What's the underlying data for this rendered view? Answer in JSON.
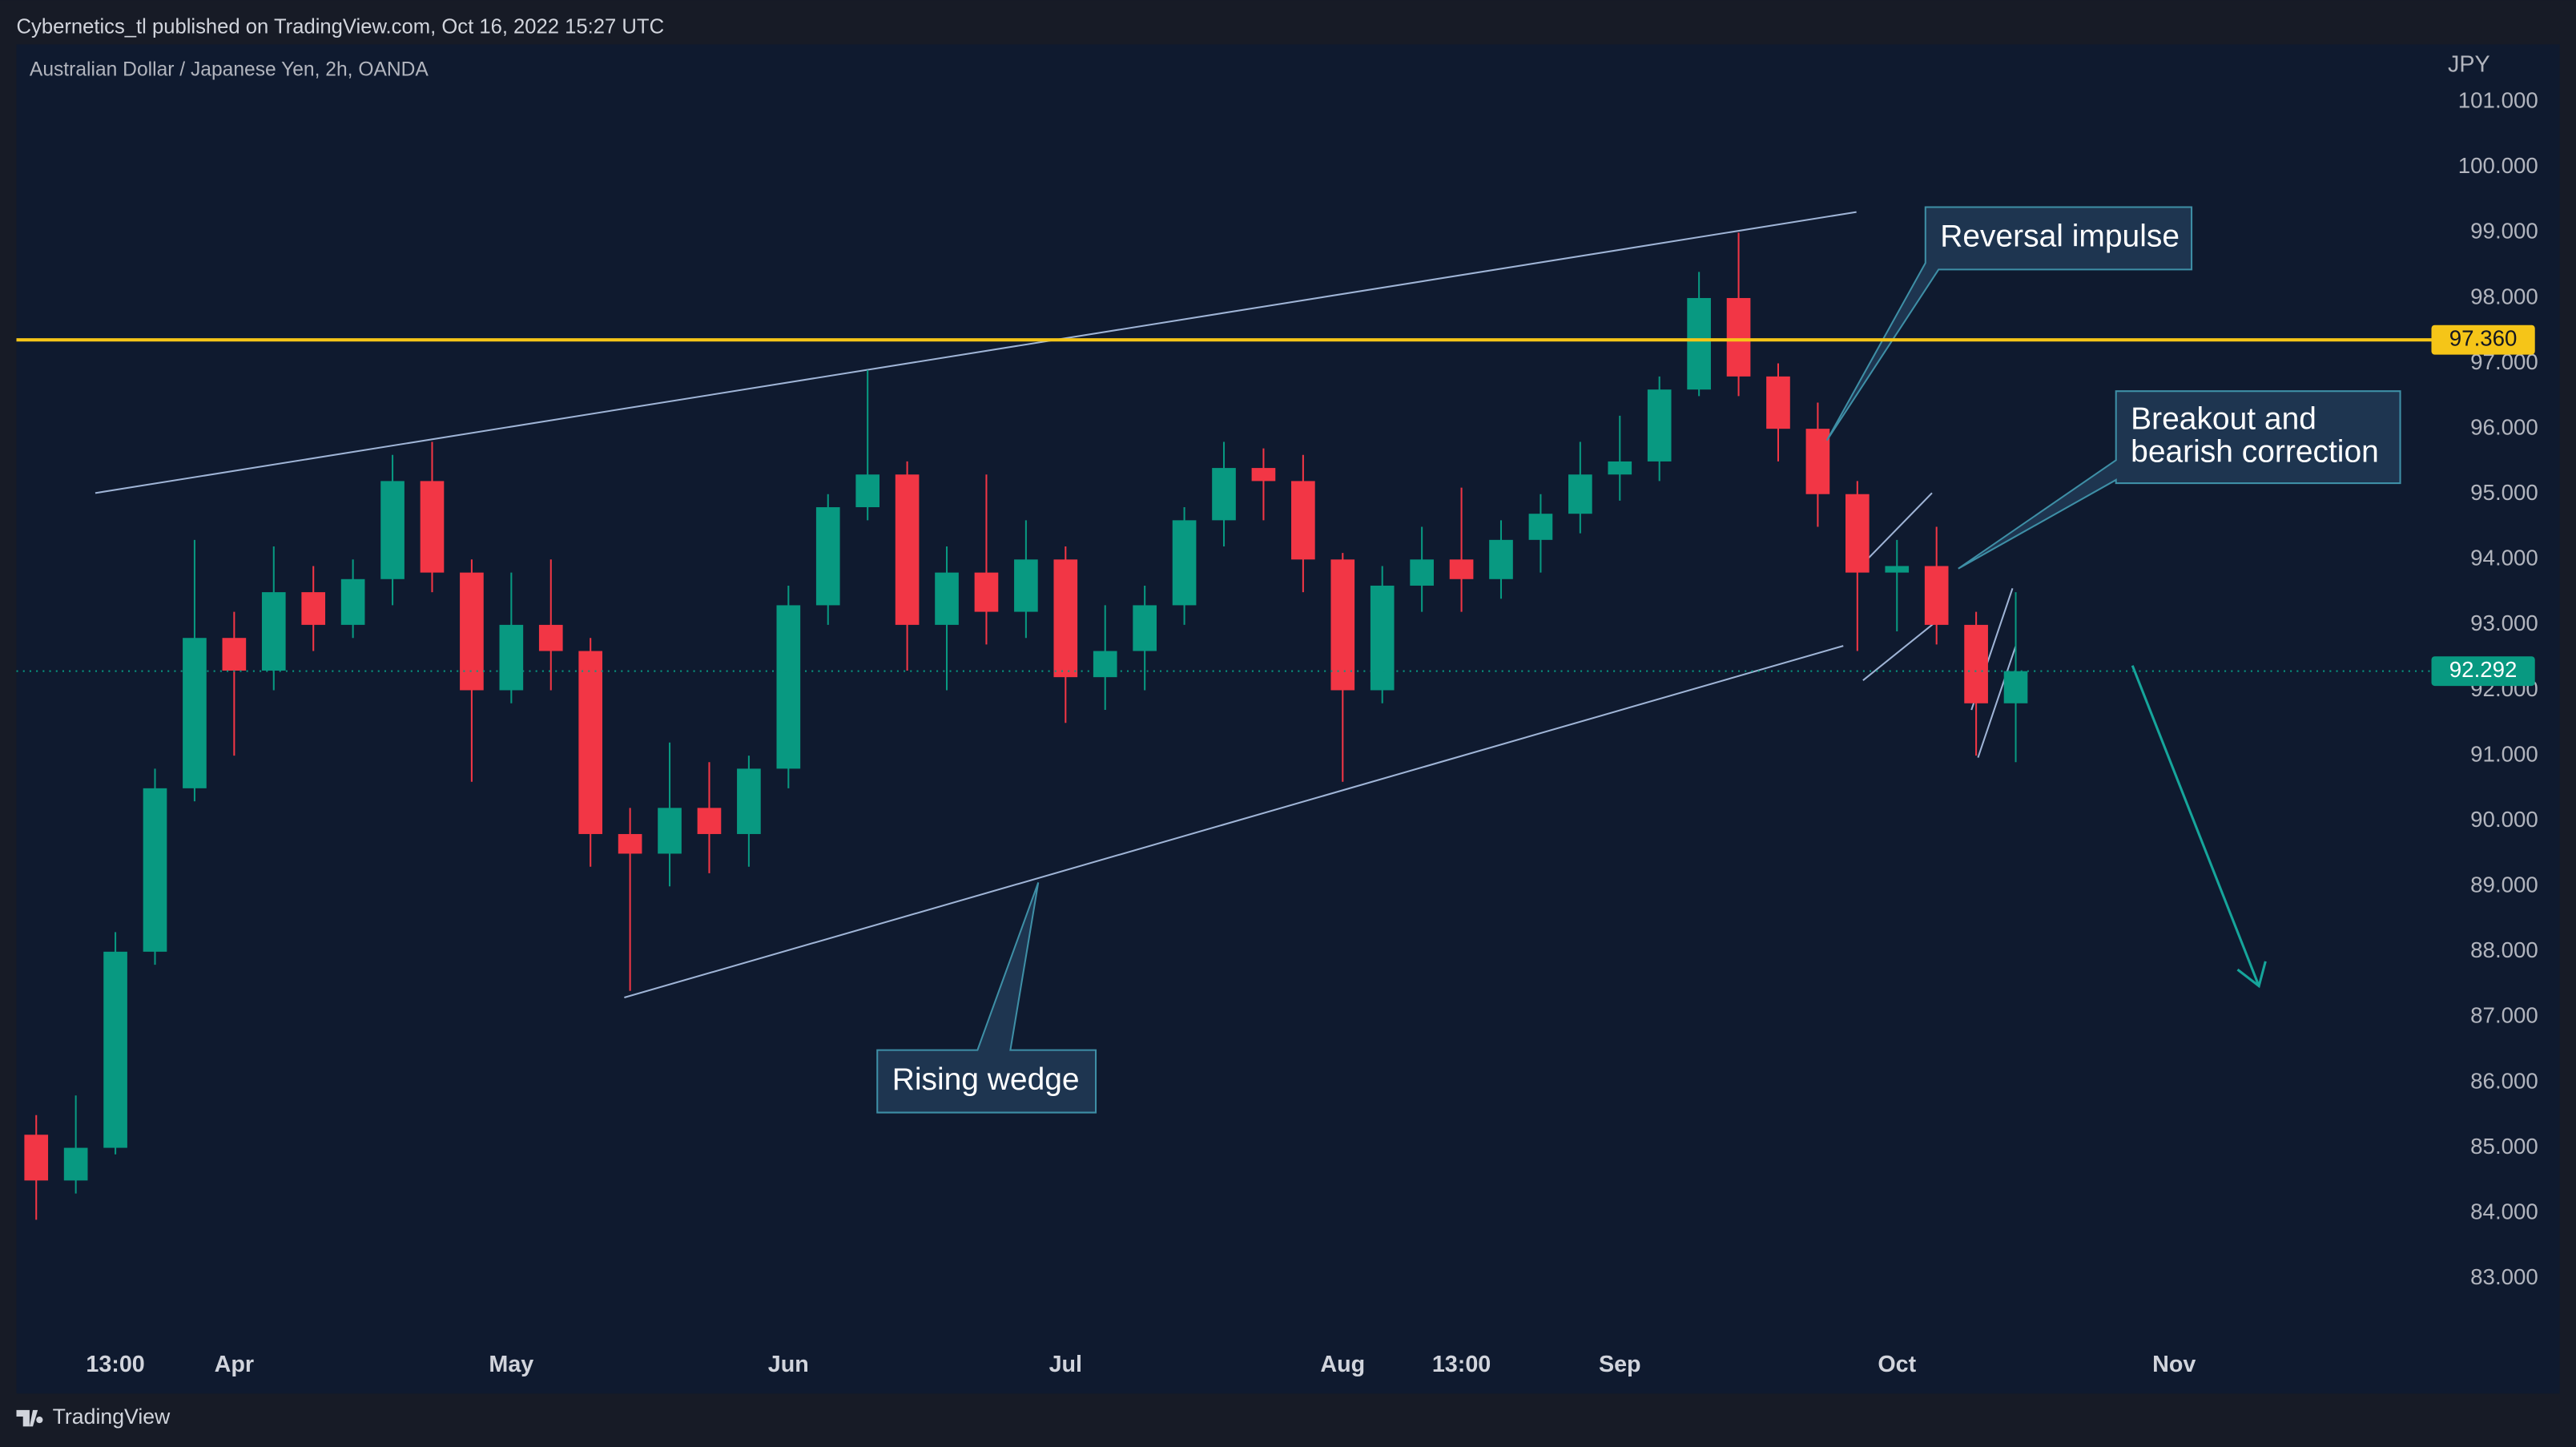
{
  "header": "Cybernetics_tl published on TradingView.com, Oct 16, 2022 15:27 UTC",
  "footer": "TradingView",
  "chart_data": {
    "type": "candlestick",
    "title": "Australian Dollar / Japanese Yen, 2h, OANDA",
    "y_label": "JPY",
    "categories": [
      null,
      null,
      "13:00",
      null,
      null,
      "Apr",
      null,
      null,
      null,
      null,
      null,
      null,
      "May",
      null,
      null,
      null,
      null,
      null,
      null,
      "Jun",
      null,
      null,
      null,
      null,
      null,
      null,
      "Jul",
      null,
      null,
      null,
      null,
      null,
      null,
      "Aug",
      null,
      null,
      "13:00",
      null,
      null,
      null,
      "Sep",
      null,
      null,
      null,
      null,
      null,
      null,
      "Oct",
      null,
      null,
      null,
      null,
      null,
      null,
      "Nov",
      null,
      null,
      null,
      null,
      null,
      null
    ],
    "open": [
      85.2,
      84.5,
      85.0,
      88.0,
      90.5,
      92.8,
      92.3,
      93.5,
      93.0,
      93.7,
      95.2,
      93.8,
      92.0,
      93.0,
      92.6,
      89.8,
      89.5,
      90.2,
      89.8,
      90.8,
      93.3,
      94.8,
      95.3,
      93.0,
      93.8,
      93.2,
      94.0,
      92.2,
      92.6,
      93.3,
      94.6,
      95.4,
      95.2,
      94.0,
      92.0,
      93.6,
      94.0,
      93.7,
      94.3,
      94.7,
      95.3,
      95.5,
      96.6,
      98.0,
      96.8,
      96.0,
      95.0,
      93.8,
      93.9,
      93.0,
      91.8,
      null,
      null,
      null,
      null,
      null,
      null,
      null,
      null,
      null,
      null
    ],
    "high": [
      85.5,
      85.8,
      88.3,
      90.8,
      94.3,
      93.2,
      94.2,
      93.9,
      94.0,
      95.6,
      95.8,
      94.0,
      93.8,
      94.0,
      92.8,
      90.2,
      91.2,
      90.9,
      91.0,
      93.6,
      95.0,
      96.9,
      95.5,
      94.2,
      95.3,
      94.6,
      94.2,
      93.3,
      93.6,
      94.8,
      95.8,
      95.7,
      95.6,
      94.1,
      93.9,
      94.5,
      95.1,
      94.6,
      95.0,
      95.8,
      96.2,
      96.8,
      98.4,
      99.0,
      97.0,
      96.4,
      95.2,
      94.3,
      94.5,
      93.2,
      93.5,
      null,
      null,
      null,
      null,
      null,
      null,
      null,
      null,
      null,
      null
    ],
    "low": [
      83.9,
      84.3,
      84.9,
      87.8,
      90.3,
      91.0,
      92.0,
      92.6,
      92.8,
      93.3,
      93.5,
      90.6,
      91.8,
      92.0,
      89.3,
      87.4,
      89.0,
      89.2,
      89.3,
      90.5,
      93.0,
      94.6,
      92.3,
      92.0,
      92.7,
      92.8,
      91.5,
      91.7,
      92.0,
      93.0,
      94.2,
      94.6,
      93.5,
      90.6,
      91.8,
      93.2,
      93.2,
      93.4,
      93.8,
      94.4,
      94.9,
      95.2,
      96.5,
      96.5,
      95.5,
      94.5,
      92.6,
      92.9,
      92.7,
      91.0,
      90.9,
      null,
      null,
      null,
      null,
      null,
      null,
      null,
      null,
      null,
      null
    ],
    "close": [
      84.5,
      85.0,
      88.0,
      90.5,
      92.8,
      92.3,
      93.5,
      93.0,
      93.7,
      95.2,
      93.8,
      92.0,
      93.0,
      92.6,
      89.8,
      89.5,
      90.2,
      89.8,
      90.8,
      93.3,
      94.8,
      95.3,
      93.0,
      93.8,
      93.2,
      94.0,
      92.2,
      92.6,
      93.3,
      94.6,
      95.4,
      95.2,
      94.0,
      92.0,
      93.6,
      94.0,
      93.7,
      94.3,
      94.7,
      95.3,
      95.5,
      96.6,
      98.0,
      96.8,
      96.0,
      95.0,
      93.8,
      93.9,
      93.0,
      91.8,
      92.292,
      null,
      null,
      null,
      null,
      null,
      null,
      null,
      null,
      null,
      null
    ],
    "up_color": "#089981",
    "down_color": "#f23645",
    "ylim": [
      82.07,
      101.88
    ],
    "yticks": [
      {
        "value": 83,
        "label": "83.000"
      },
      {
        "value": 84,
        "label": "84.000"
      },
      {
        "value": 85,
        "label": "85.000"
      },
      {
        "value": 86,
        "label": "86.000"
      },
      {
        "value": 87,
        "label": "87.000"
      },
      {
        "value": 88,
        "label": "88.000"
      },
      {
        "value": 89,
        "label": "89.000"
      },
      {
        "value": 90,
        "label": "90.000"
      },
      {
        "value": 91,
        "label": "91.000"
      },
      {
        "value": 92,
        "label": "92.000"
      },
      {
        "value": 93,
        "label": "93.000"
      },
      {
        "value": 94,
        "label": "94.000"
      },
      {
        "value": 95,
        "label": "95.000"
      },
      {
        "value": 96,
        "label": "96.000"
      },
      {
        "value": 97,
        "label": "97.000"
      },
      {
        "value": 98,
        "label": "98.000"
      },
      {
        "value": 99,
        "label": "99.000"
      },
      {
        "value": 100,
        "label": "100.000"
      },
      {
        "value": 101,
        "label": "101.000"
      }
    ],
    "grid": false,
    "level": {
      "value": 97.36,
      "label": "97.360",
      "color": "#f5c518"
    },
    "last_price": {
      "value": 92.292,
      "label": "92.292",
      "color": "#089981"
    },
    "annotations": [
      {
        "text": [
          "Reversal impulse"
        ]
      },
      {
        "text": [
          "Breakout and",
          "bearish correction"
        ]
      },
      {
        "text": [
          "Rising wedge"
        ]
      }
    ]
  }
}
